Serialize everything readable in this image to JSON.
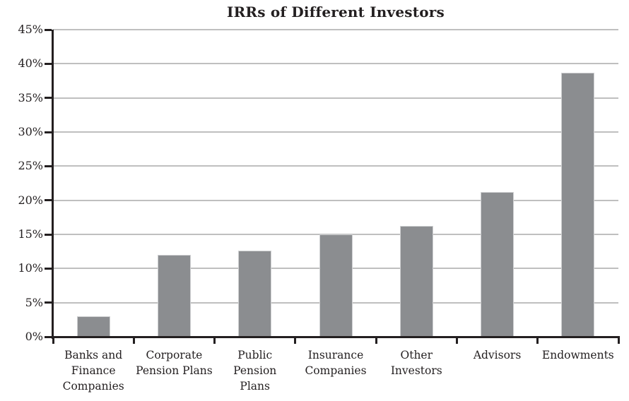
{
  "chart_data": {
    "type": "bar",
    "title": "IRRs of Different Investors",
    "categories": [
      "Banks and Finance Companies",
      "Corporate Pension Plans",
      "Public Pension Plans",
      "Insurance Companies",
      "Other Investors",
      "Advisors",
      "Endowments"
    ],
    "category_labels_wrapped": [
      [
        "Banks and",
        "Finance",
        "Companies"
      ],
      [
        "Corporate",
        "Pension Plans"
      ],
      [
        "Public Pension",
        "Plans"
      ],
      [
        "Insurance",
        "Companies"
      ],
      [
        "Other",
        "Investors"
      ],
      [
        "Advisors"
      ],
      [
        "Endowments"
      ]
    ],
    "values": [
      3.0,
      12.0,
      12.6,
      15.0,
      16.2,
      21.2,
      38.7
    ],
    "unit": "%",
    "xlabel": "",
    "ylabel": "",
    "ylim": [
      0,
      45
    ],
    "ytick_step": 5,
    "ytick_labels": [
      "0%",
      "5%",
      "10%",
      "15%",
      "20%",
      "25%",
      "30%",
      "35%",
      "40%",
      "45%"
    ],
    "grid": true,
    "legend": "none",
    "colors": {
      "bar": "#8b8d90",
      "bar_border": "#cfd0d2",
      "gridline": "#bfbfbf",
      "axis": "#231f20",
      "text": "#231f20",
      "background": "#ffffff"
    }
  }
}
